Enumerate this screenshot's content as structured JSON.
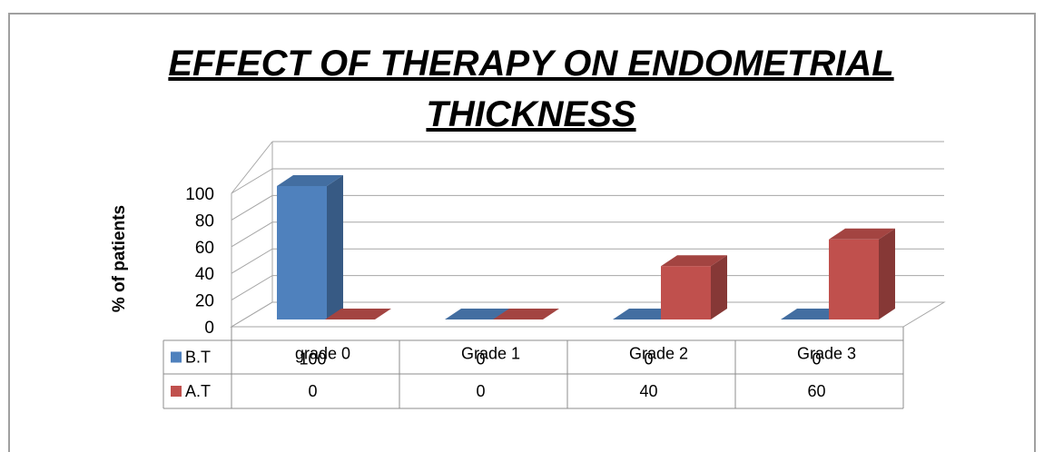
{
  "chart_data": {
    "type": "bar3d",
    "title": "EFFECT OF THERAPY ON ENDOMETRIAL THICKNESS",
    "ylabel": "% of patients",
    "categories": [
      "grade 0",
      "Grade 1",
      "Grade 2",
      "Grade 3"
    ],
    "series": [
      {
        "name": "B.T",
        "color": "#4f81bd",
        "values": [
          100,
          0,
          0,
          0
        ]
      },
      {
        "name": "A.T",
        "color": "#c0504d",
        "values": [
          0,
          0,
          40,
          60
        ]
      }
    ],
    "ylim": [
      0,
      100
    ],
    "yticks": [
      0,
      20,
      40,
      60,
      80,
      100
    ],
    "grid": true,
    "data_table": true
  }
}
